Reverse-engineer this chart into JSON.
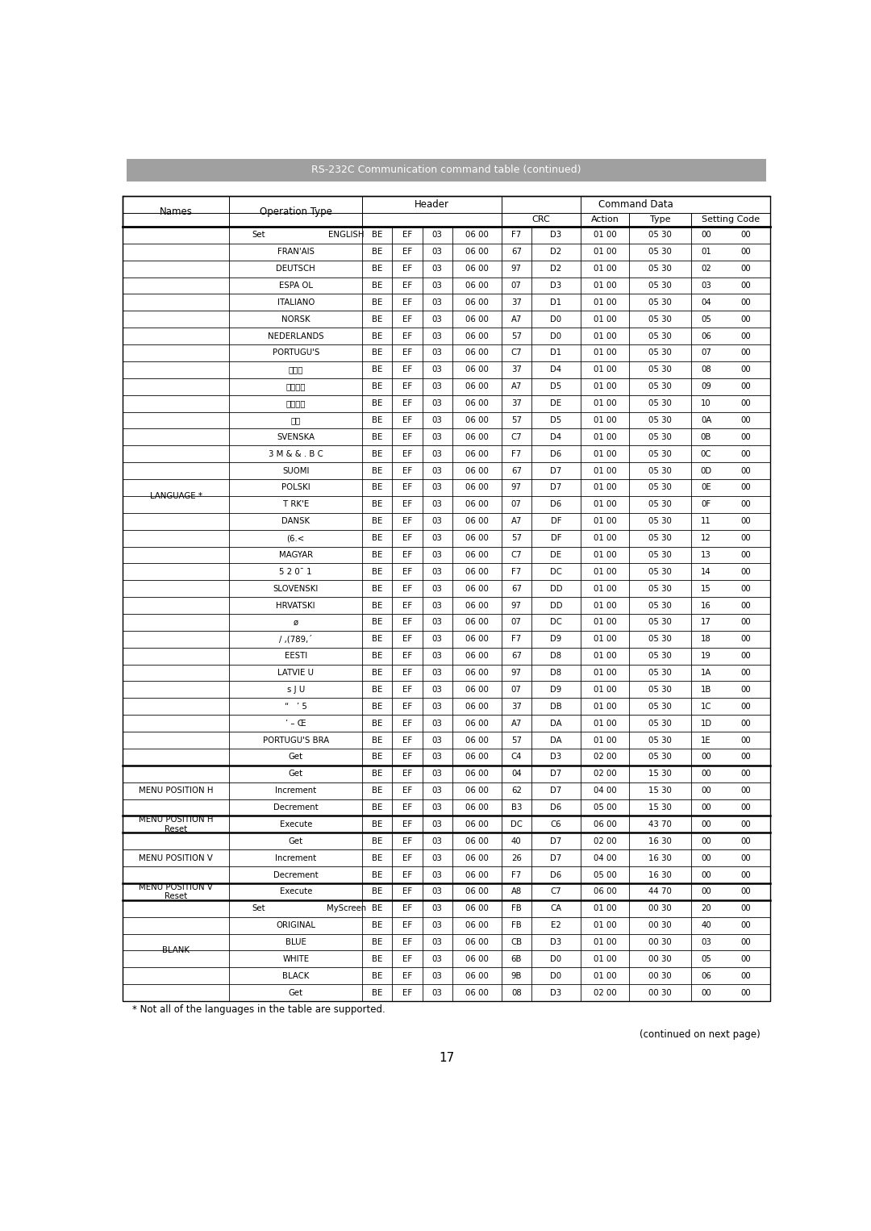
{
  "title": "RS-232C Communication command table (continued)",
  "page_number": "17",
  "footnote": "* Not all of the languages in the table are supported.",
  "continued": "(continued on next page)",
  "rows": [
    [
      "LANGUAGE *",
      "Set",
      "ENGLISH",
      "BE",
      "EF",
      "03",
      "06 00",
      "F7",
      "D3",
      "01 00",
      "05 30",
      "00",
      "00"
    ],
    [
      "",
      "",
      "FRAN'AIS",
      "BE",
      "EF",
      "03",
      "06 00",
      "67",
      "D2",
      "01 00",
      "05 30",
      "01",
      "00"
    ],
    [
      "",
      "",
      "DEUTSCH",
      "BE",
      "EF",
      "03",
      "06 00",
      "97",
      "D2",
      "01 00",
      "05 30",
      "02",
      "00"
    ],
    [
      "",
      "",
      "ESPA OL",
      "BE",
      "EF",
      "03",
      "06 00",
      "07",
      "D3",
      "01 00",
      "05 30",
      "03",
      "00"
    ],
    [
      "",
      "",
      "ITALIANO",
      "BE",
      "EF",
      "03",
      "06 00",
      "37",
      "D1",
      "01 00",
      "05 30",
      "04",
      "00"
    ],
    [
      "",
      "",
      "NORSK",
      "BE",
      "EF",
      "03",
      "06 00",
      "A7",
      "D0",
      "01 00",
      "05 30",
      "05",
      "00"
    ],
    [
      "",
      "",
      "NEDERLANDS",
      "BE",
      "EF",
      "03",
      "06 00",
      "57",
      "D0",
      "01 00",
      "05 30",
      "06",
      "00"
    ],
    [
      "",
      "",
      "PORTUGU'S",
      "BE",
      "EF",
      "03",
      "06 00",
      "C7",
      "D1",
      "01 00",
      "05 30",
      "07",
      "00"
    ],
    [
      "",
      "",
      "日本語",
      "BE",
      "EF",
      "03",
      "06 00",
      "37",
      "D4",
      "01 00",
      "05 30",
      "08",
      "00"
    ],
    [
      "",
      "",
      "简体中文",
      "BE",
      "EF",
      "03",
      "06 00",
      "A7",
      "D5",
      "01 00",
      "05 30",
      "09",
      "00"
    ],
    [
      "",
      "",
      "繁體中文",
      "BE",
      "EF",
      "03",
      "06 00",
      "37",
      "DE",
      "01 00",
      "05 30",
      "10",
      "00"
    ],
    [
      "",
      "",
      "한글",
      "BE",
      "EF",
      "03",
      "06 00",
      "57",
      "D5",
      "01 00",
      "05 30",
      "0A",
      "00"
    ],
    [
      "",
      "",
      "SVENSKA",
      "BE",
      "EF",
      "03",
      "06 00",
      "C7",
      "D4",
      "01 00",
      "05 30",
      "0B",
      "00"
    ],
    [
      "",
      "",
      "3 M & & . B C",
      "BE",
      "EF",
      "03",
      "06 00",
      "F7",
      "D6",
      "01 00",
      "05 30",
      "0C",
      "00"
    ],
    [
      "",
      "",
      "SUOMI",
      "BE",
      "EF",
      "03",
      "06 00",
      "67",
      "D7",
      "01 00",
      "05 30",
      "0D",
      "00"
    ],
    [
      "",
      "",
      "POLSKI",
      "BE",
      "EF",
      "03",
      "06 00",
      "97",
      "D7",
      "01 00",
      "05 30",
      "0E",
      "00"
    ],
    [
      "",
      "",
      "T RK'E",
      "BE",
      "EF",
      "03",
      "06 00",
      "07",
      "D6",
      "01 00",
      "05 30",
      "0F",
      "00"
    ],
    [
      "",
      "",
      "DANSK",
      "BE",
      "EF",
      "03",
      "06 00",
      "A7",
      "DF",
      "01 00",
      "05 30",
      "11",
      "00"
    ],
    [
      "",
      "",
      "(6.<",
      "BE",
      "EF",
      "03",
      "06 00",
      "57",
      "DF",
      "01 00",
      "05 30",
      "12",
      "00"
    ],
    [
      "",
      "",
      "MAGYAR",
      "BE",
      "EF",
      "03",
      "06 00",
      "C7",
      "DE",
      "01 00",
      "05 30",
      "13",
      "00"
    ],
    [
      "",
      "",
      "5 2 0¯ 1",
      "BE",
      "EF",
      "03",
      "06 00",
      "F7",
      "DC",
      "01 00",
      "05 30",
      "14",
      "00"
    ],
    [
      "",
      "",
      "SLOVENSKI",
      "BE",
      "EF",
      "03",
      "06 00",
      "67",
      "DD",
      "01 00",
      "05 30",
      "15",
      "00"
    ],
    [
      "",
      "",
      "HRVATSKI",
      "BE",
      "EF",
      "03",
      "06 00",
      "97",
      "DD",
      "01 00",
      "05 30",
      "16",
      "00"
    ],
    [
      "",
      "",
      "ø",
      "BE",
      "EF",
      "03",
      "06 00",
      "07",
      "DC",
      "01 00",
      "05 30",
      "17",
      "00"
    ],
    [
      "",
      "",
      "/ ,(789,´",
      "BE",
      "EF",
      "03",
      "06 00",
      "F7",
      "D9",
      "01 00",
      "05 30",
      "18",
      "00"
    ],
    [
      "",
      "",
      "EESTI",
      "BE",
      "EF",
      "03",
      "06 00",
      "67",
      "D8",
      "01 00",
      "05 30",
      "19",
      "00"
    ],
    [
      "",
      "",
      "LATVIE U",
      "BE",
      "EF",
      "03",
      "06 00",
      "97",
      "D8",
      "01 00",
      "05 30",
      "1A",
      "00"
    ],
    [
      "",
      "",
      "s J U",
      "BE",
      "EF",
      "03",
      "06 00",
      "07",
      "D9",
      "01 00",
      "05 30",
      "1B",
      "00"
    ],
    [
      "",
      "",
      "“   ’ 5",
      "BE",
      "EF",
      "03",
      "06 00",
      "37",
      "DB",
      "01 00",
      "05 30",
      "1C",
      "00"
    ],
    [
      "",
      "",
      "’ – Œ",
      "BE",
      "EF",
      "03",
      "06 00",
      "A7",
      "DA",
      "01 00",
      "05 30",
      "1D",
      "00"
    ],
    [
      "",
      "",
      "PORTUGU'S BRA",
      "BE",
      "EF",
      "03",
      "06 00",
      "57",
      "DA",
      "01 00",
      "05 30",
      "1E",
      "00"
    ],
    [
      "",
      "",
      "Get",
      "BE",
      "EF",
      "03",
      "06 00",
      "C4",
      "D3",
      "02 00",
      "05 30",
      "00",
      "00"
    ],
    [
      "MENU POSITION H",
      "",
      "Get",
      "BE",
      "EF",
      "03",
      "06 00",
      "04",
      "D7",
      "02 00",
      "15 30",
      "00",
      "00"
    ],
    [
      "",
      "",
      "Increment",
      "BE",
      "EF",
      "03",
      "06 00",
      "62",
      "D7",
      "04 00",
      "15 30",
      "00",
      "00"
    ],
    [
      "",
      "",
      "Decrement",
      "BE",
      "EF",
      "03",
      "06 00",
      "B3",
      "D6",
      "05 00",
      "15 30",
      "00",
      "00"
    ],
    [
      "MENU POSITION H\nReset",
      "",
      "Execute",
      "BE",
      "EF",
      "03",
      "06 00",
      "DC",
      "C6",
      "06 00",
      "43 70",
      "00",
      "00"
    ],
    [
      "MENU POSITION V",
      "",
      "Get",
      "BE",
      "EF",
      "03",
      "06 00",
      "40",
      "D7",
      "02 00",
      "16 30",
      "00",
      "00"
    ],
    [
      "",
      "",
      "Increment",
      "BE",
      "EF",
      "03",
      "06 00",
      "26",
      "D7",
      "04 00",
      "16 30",
      "00",
      "00"
    ],
    [
      "",
      "",
      "Decrement",
      "BE",
      "EF",
      "03",
      "06 00",
      "F7",
      "D6",
      "05 00",
      "16 30",
      "00",
      "00"
    ],
    [
      "MENU POSITION V\nReset",
      "",
      "Execute",
      "BE",
      "EF",
      "03",
      "06 00",
      "A8",
      "C7",
      "06 00",
      "44 70",
      "00",
      "00"
    ],
    [
      "BLANK",
      "Set",
      "MyScreen",
      "BE",
      "EF",
      "03",
      "06 00",
      "FB",
      "CA",
      "01 00",
      "00 30",
      "20",
      "00"
    ],
    [
      "",
      "",
      "ORIGINAL",
      "BE",
      "EF",
      "03",
      "06 00",
      "FB",
      "E2",
      "01 00",
      "00 30",
      "40",
      "00"
    ],
    [
      "",
      "",
      "BLUE",
      "BE",
      "EF",
      "03",
      "06 00",
      "CB",
      "D3",
      "01 00",
      "00 30",
      "03",
      "00"
    ],
    [
      "",
      "",
      "WHITE",
      "BE",
      "EF",
      "03",
      "06 00",
      "6B",
      "D0",
      "01 00",
      "00 30",
      "05",
      "00"
    ],
    [
      "",
      "",
      "BLACK",
      "BE",
      "EF",
      "03",
      "06 00",
      "9B",
      "D0",
      "01 00",
      "00 30",
      "06",
      "00"
    ],
    [
      "",
      "",
      "Get",
      "BE",
      "EF",
      "03",
      "06 00",
      "08",
      "D3",
      "02 00",
      "00 30",
      "00",
      "00"
    ]
  ],
  "col_widths_rel": [
    1.35,
    0.38,
    1.3,
    0.38,
    0.38,
    0.38,
    0.62,
    0.38,
    0.62,
    0.62,
    0.78,
    0.38,
    0.62
  ],
  "banner_color": "#a0a0a0",
  "banner_text_color": "#ffffff",
  "bg_color": "#ffffff"
}
